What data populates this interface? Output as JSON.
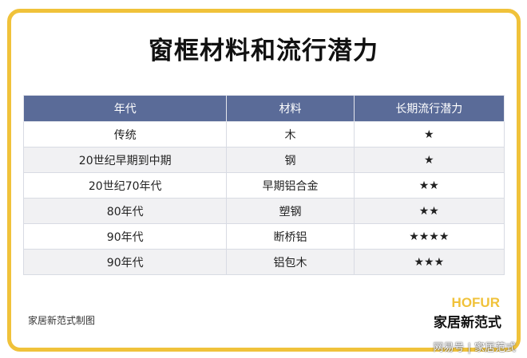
{
  "title": "窗框材料和流行潜力",
  "table": {
    "headers": [
      "年代",
      "材料",
      "长期流行潜力"
    ],
    "rows": [
      [
        "传统",
        "木",
        "★"
      ],
      [
        "20世纪早期到中期",
        "钢",
        "★"
      ],
      [
        "20世纪70年代",
        "早期铝合金",
        "★★"
      ],
      [
        "80年代",
        "塑钢",
        "★★"
      ],
      [
        "90年代",
        "断桥铝",
        "★★★★"
      ],
      [
        "90年代",
        "铝包木",
        "★★★"
      ]
    ]
  },
  "footer": {
    "credit": "家居新范式制图",
    "logo_en": "HOFUR",
    "logo_cn": "家居新范式",
    "watermark": "网易号 | 家居范式"
  },
  "colors": {
    "frame": "#f0c23a",
    "header": "#5a6b98"
  }
}
